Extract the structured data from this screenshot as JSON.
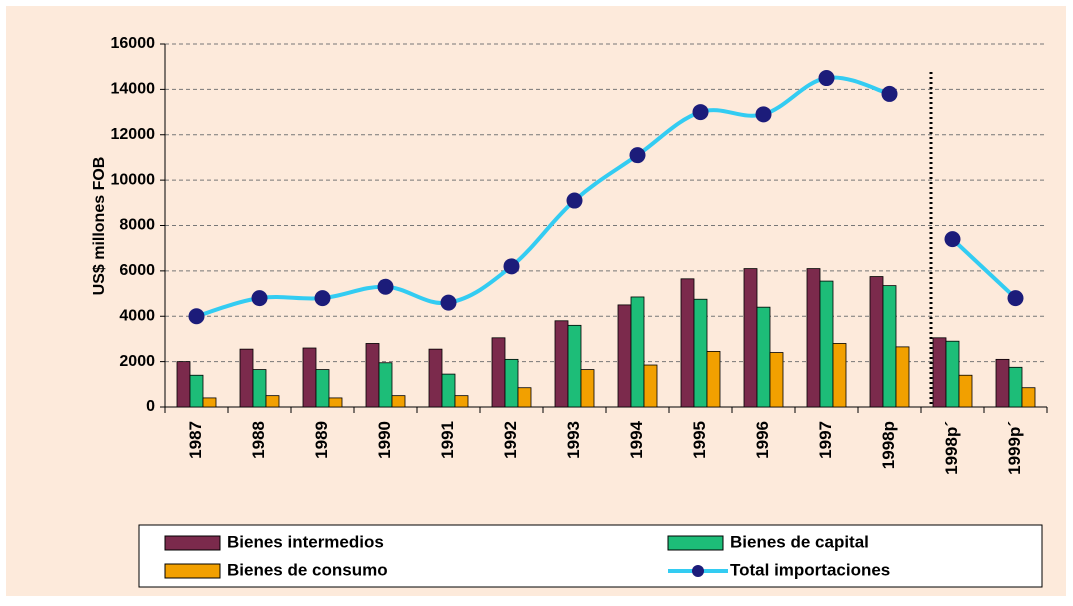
{
  "chart_data": {
    "type": "bar",
    "y_label": "US$ millones FOB",
    "categories": [
      "1987",
      "1988",
      "1989",
      "1990",
      "1991",
      "1992",
      "1993",
      "1994",
      "1995",
      "1996",
      "1997",
      "1998p",
      "1998p´",
      "1999p´"
    ],
    "series": [
      {
        "name": "Bienes intermedios",
        "color": "#7b2a4c",
        "type": "bar",
        "values": [
          2000,
          2550,
          2600,
          2800,
          2550,
          3050,
          3800,
          4500,
          5650,
          6100,
          6100,
          5750,
          3050,
          2100
        ]
      },
      {
        "name": "Bienes de capital",
        "color": "#1dbd78",
        "type": "bar",
        "values": [
          1400,
          1650,
          1650,
          1950,
          1450,
          2100,
          3600,
          4850,
          4750,
          4400,
          5550,
          5350,
          2900,
          1750
        ]
      },
      {
        "name": "Bienes de consumo",
        "color": "#f2a000",
        "type": "bar",
        "values": [
          400,
          500,
          400,
          500,
          500,
          850,
          1650,
          1850,
          2450,
          2400,
          2800,
          2650,
          1400,
          850
        ]
      },
      {
        "name": "Total importaciones",
        "color": "#33ccf2",
        "marker_color": "#1c1c7a",
        "type": "line",
        "values": [
          4000,
          4800,
          4800,
          5300,
          4600,
          6200,
          9100,
          11100,
          13000,
          12900,
          14500,
          13800,
          7400,
          4800
        ]
      }
    ],
    "ylim": [
      0,
      16000
    ],
    "yticks": [
      0,
      2000,
      4000,
      6000,
      8000,
      10000,
      12000,
      14000,
      16000
    ],
    "grid": true
  }
}
